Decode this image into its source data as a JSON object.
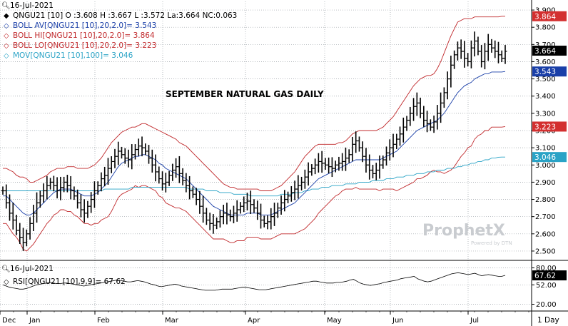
{
  "header": {
    "date": "16-Jul-2021",
    "indicators": [
      {
        "text": "QNGU21 [10] O :3.608 H :3.667 L :3.572 La:3.664 NC:0.063",
        "color": "#000000",
        "marker": "diamond"
      },
      {
        "text": "BOLL AV[QNGU21 [10],20,2.0]= 3.543",
        "color": "#1a3fa8",
        "marker": "diamond-outline"
      },
      {
        "text": "BOLL HI[QNGU21 [10],20,2.0]= 3.864",
        "color": "#c0282b",
        "marker": "diamond-outline"
      },
      {
        "text": "BOLL LO[QNGU21 [10],20,2.0]= 3.223",
        "color": "#c0282b",
        "marker": "diamond-outline"
      },
      {
        "text": "MOV[QNGU21 [10],100]= 3.046",
        "color": "#2aa3c6",
        "marker": "diamond-outline"
      }
    ]
  },
  "annotation": "SEPTEMBER NATURAL GAS DAILY",
  "watermark": {
    "brand": "ProphetX",
    "sub": "Powered by DTN"
  },
  "rsi_header": {
    "date": "16-Jul-2021",
    "text": "RSI[QNGU21 [10],9,9]= 67.62"
  },
  "timeframe": "1 Day",
  "colors": {
    "bar": "#000000",
    "boll_mid": "#1a3fa8",
    "boll_band": "#c0282b",
    "mov": "#2aa3c6",
    "grid": "#9aa0a6",
    "tag_last": "#000000",
    "tag_mid": "#1a3fa8",
    "tag_band": "#d32f2f",
    "tag_mov": "#2aa3c6"
  },
  "chart_data": [
    {
      "type": "ohlc",
      "title": "SEPTEMBER NATURAL GAS DAILY",
      "ylim": [
        2.45,
        3.95
      ],
      "y_ticks": [
        2.5,
        2.6,
        2.7,
        2.8,
        2.9,
        3.0,
        3.1,
        3.2,
        3.3,
        3.4,
        3.5,
        3.6,
        3.7,
        3.8,
        3.9
      ],
      "y_tick_labels": [
        "2.500",
        "2.600",
        "2.700",
        "2.800",
        "2.900",
        "3.000",
        "3.100",
        "3.200",
        "3.300",
        "3.400",
        "3.500",
        "3.600",
        "3.700",
        "3.800",
        "3.900"
      ],
      "months": [
        "Dec",
        "Jan",
        "Feb",
        "Mar",
        "Apr",
        "May",
        "Jun",
        "Jul"
      ],
      "grid": true,
      "price_tags": [
        {
          "label": "3.864",
          "value": 3.864,
          "kind": "band"
        },
        {
          "label": "3.664",
          "value": 3.664,
          "kind": "last"
        },
        {
          "label": "3.543",
          "value": 3.543,
          "kind": "mid"
        },
        {
          "label": "3.223",
          "value": 3.223,
          "kind": "band"
        },
        {
          "label": "3.046",
          "value": 3.046,
          "kind": "mov"
        }
      ],
      "closes": [
        2.85,
        2.78,
        2.72,
        2.68,
        2.62,
        2.58,
        2.55,
        2.6,
        2.66,
        2.72,
        2.78,
        2.82,
        2.85,
        2.88,
        2.9,
        2.88,
        2.85,
        2.87,
        2.9,
        2.88,
        2.85,
        2.82,
        2.78,
        2.74,
        2.72,
        2.76,
        2.8,
        2.85,
        2.88,
        2.92,
        2.94,
        2.98,
        3.02,
        3.05,
        3.08,
        3.06,
        3.04,
        3.03,
        3.06,
        3.09,
        3.11,
        3.1,
        3.08,
        3.04,
        3.0,
        2.96,
        2.92,
        2.89,
        2.9,
        2.94,
        2.97,
        2.99,
        2.95,
        2.91,
        2.88,
        2.85,
        2.83,
        2.8,
        2.76,
        2.72,
        2.68,
        2.66,
        2.65,
        2.67,
        2.7,
        2.72,
        2.71,
        2.7,
        2.72,
        2.74,
        2.76,
        2.78,
        2.79,
        2.77,
        2.75,
        2.72,
        2.68,
        2.66,
        2.67,
        2.7,
        2.72,
        2.75,
        2.78,
        2.8,
        2.82,
        2.84,
        2.86,
        2.88,
        2.9,
        2.93,
        2.96,
        2.98,
        3.0,
        3.02,
        3.01,
        3.0,
        2.99,
        2.98,
        3.0,
        3.01,
        3.02,
        3.04,
        3.06,
        3.12,
        3.14,
        3.1,
        3.05,
        3.0,
        2.97,
        2.95,
        2.97,
        3.0,
        3.03,
        3.07,
        3.1,
        3.12,
        3.15,
        3.18,
        3.22,
        3.26,
        3.3,
        3.34,
        3.36,
        3.3,
        3.26,
        3.24,
        3.22,
        3.25,
        3.3,
        3.36,
        3.42,
        3.5,
        3.58,
        3.64,
        3.68,
        3.66,
        3.62,
        3.6,
        3.68,
        3.72,
        3.66,
        3.6,
        3.66,
        3.7,
        3.68,
        3.66,
        3.64,
        3.62,
        3.66
      ],
      "boll_av": [
        2.82,
        2.82,
        2.8,
        2.78,
        2.76,
        2.74,
        2.72,
        2.71,
        2.71,
        2.72,
        2.74,
        2.76,
        2.78,
        2.8,
        2.82,
        2.84,
        2.85,
        2.86,
        2.86,
        2.86,
        2.86,
        2.85,
        2.84,
        2.83,
        2.82,
        2.82,
        2.82,
        2.83,
        2.84,
        2.86,
        2.88,
        2.9,
        2.93,
        2.96,
        2.99,
        3.01,
        3.02,
        3.03,
        3.04,
        3.05,
        3.05,
        3.06,
        3.06,
        3.05,
        3.04,
        3.03,
        3.01,
        3.0,
        2.98,
        2.97,
        2.96,
        2.95,
        2.94,
        2.93,
        2.92,
        2.9,
        2.88,
        2.86,
        2.84,
        2.82,
        2.8,
        2.78,
        2.76,
        2.75,
        2.74,
        2.73,
        2.72,
        2.71,
        2.71,
        2.71,
        2.71,
        2.71,
        2.72,
        2.72,
        2.72,
        2.72,
        2.71,
        2.71,
        2.71,
        2.71,
        2.72,
        2.73,
        2.74,
        2.75,
        2.76,
        2.77,
        2.78,
        2.8,
        2.82,
        2.84,
        2.86,
        2.88,
        2.9,
        2.92,
        2.93,
        2.94,
        2.95,
        2.96,
        2.97,
        2.98,
        2.99,
        3.0,
        3.01,
        3.02,
        3.03,
        3.03,
        3.03,
        3.03,
        3.03,
        3.03,
        3.03,
        3.03,
        3.04,
        3.05,
        3.06,
        3.07,
        3.08,
        3.1,
        3.12,
        3.14,
        3.16,
        3.18,
        3.2,
        3.21,
        3.22,
        3.23,
        3.24,
        3.25,
        3.26,
        3.28,
        3.3,
        3.33,
        3.36,
        3.39,
        3.42,
        3.44,
        3.46,
        3.47,
        3.48,
        3.5,
        3.51,
        3.52,
        3.53,
        3.53,
        3.54,
        3.54,
        3.54,
        3.54,
        3.543
      ],
      "boll_hi": [
        2.98,
        2.98,
        2.97,
        2.96,
        2.94,
        2.93,
        2.93,
        2.92,
        2.9,
        2.9,
        2.91,
        2.92,
        2.93,
        2.94,
        2.96,
        2.97,
        2.98,
        2.98,
        2.98,
        2.99,
        2.99,
        2.99,
        2.98,
        2.98,
        2.98,
        2.98,
        2.99,
        3.0,
        3.02,
        3.04,
        3.07,
        3.1,
        3.13,
        3.15,
        3.17,
        3.19,
        3.2,
        3.21,
        3.22,
        3.22,
        3.23,
        3.24,
        3.24,
        3.23,
        3.22,
        3.21,
        3.2,
        3.19,
        3.18,
        3.17,
        3.16,
        3.15,
        3.13,
        3.12,
        3.11,
        3.09,
        3.07,
        3.05,
        3.03,
        3.01,
        2.99,
        2.97,
        2.95,
        2.93,
        2.91,
        2.89,
        2.88,
        2.87,
        2.87,
        2.86,
        2.86,
        2.86,
        2.86,
        2.86,
        2.86,
        2.86,
        2.85,
        2.85,
        2.85,
        2.85,
        2.86,
        2.87,
        2.88,
        2.9,
        2.92,
        2.94,
        2.96,
        2.99,
        3.02,
        3.05,
        3.07,
        3.09,
        3.11,
        3.12,
        3.12,
        3.12,
        3.12,
        3.12,
        3.12,
        3.13,
        3.13,
        3.14,
        3.16,
        3.18,
        3.19,
        3.2,
        3.2,
        3.2,
        3.2,
        3.2,
        3.2,
        3.21,
        3.22,
        3.24,
        3.26,
        3.28,
        3.31,
        3.34,
        3.37,
        3.4,
        3.43,
        3.46,
        3.48,
        3.5,
        3.51,
        3.52,
        3.52,
        3.53,
        3.56,
        3.6,
        3.65,
        3.7,
        3.75,
        3.79,
        3.83,
        3.84,
        3.85,
        3.85,
        3.85,
        3.86,
        3.86,
        3.86,
        3.86,
        3.86,
        3.86,
        3.86,
        3.86,
        3.864,
        3.864
      ],
      "boll_lo": [
        2.66,
        2.66,
        2.63,
        2.6,
        2.58,
        2.55,
        2.51,
        2.5,
        2.52,
        2.54,
        2.57,
        2.6,
        2.63,
        2.66,
        2.68,
        2.71,
        2.72,
        2.74,
        2.74,
        2.73,
        2.73,
        2.71,
        2.7,
        2.68,
        2.66,
        2.66,
        2.65,
        2.66,
        2.66,
        2.68,
        2.69,
        2.7,
        2.73,
        2.77,
        2.81,
        2.83,
        2.84,
        2.85,
        2.86,
        2.88,
        2.87,
        2.88,
        2.88,
        2.87,
        2.86,
        2.85,
        2.82,
        2.81,
        2.78,
        2.77,
        2.76,
        2.75,
        2.75,
        2.74,
        2.73,
        2.71,
        2.69,
        2.67,
        2.65,
        2.63,
        2.61,
        2.59,
        2.57,
        2.57,
        2.57,
        2.57,
        2.56,
        2.55,
        2.55,
        2.56,
        2.56,
        2.56,
        2.58,
        2.58,
        2.58,
        2.58,
        2.57,
        2.57,
        2.57,
        2.57,
        2.58,
        2.59,
        2.6,
        2.6,
        2.6,
        2.6,
        2.6,
        2.61,
        2.62,
        2.63,
        2.65,
        2.67,
        2.69,
        2.72,
        2.74,
        2.76,
        2.78,
        2.8,
        2.82,
        2.83,
        2.85,
        2.86,
        2.86,
        2.86,
        2.87,
        2.86,
        2.86,
        2.86,
        2.86,
        2.86,
        2.86,
        2.85,
        2.86,
        2.86,
        2.86,
        2.86,
        2.85,
        2.86,
        2.87,
        2.88,
        2.89,
        2.9,
        2.92,
        2.92,
        2.93,
        2.94,
        2.96,
        2.97,
        2.96,
        2.96,
        2.95,
        2.96,
        2.97,
        2.99,
        3.02,
        3.05,
        3.07,
        3.1,
        3.11,
        3.15,
        3.17,
        3.18,
        3.2,
        3.2,
        3.22,
        3.22,
        3.22,
        3.22,
        3.223
      ],
      "mov": [
        2.85,
        2.85,
        2.85,
        2.85,
        2.85,
        2.85,
        2.85,
        2.85,
        2.85,
        2.85,
        2.85,
        2.85,
        2.85,
        2.85,
        2.85,
        2.85,
        2.85,
        2.85,
        2.85,
        2.85,
        2.85,
        2.85,
        2.85,
        2.85,
        2.85,
        2.85,
        2.85,
        2.85,
        2.85,
        2.85,
        2.86,
        2.86,
        2.86,
        2.86,
        2.86,
        2.86,
        2.86,
        2.86,
        2.87,
        2.87,
        2.87,
        2.87,
        2.87,
        2.87,
        2.87,
        2.87,
        2.87,
        2.87,
        2.87,
        2.87,
        2.87,
        2.87,
        2.87,
        2.87,
        2.87,
        2.86,
        2.86,
        2.86,
        2.86,
        2.86,
        2.85,
        2.85,
        2.85,
        2.85,
        2.84,
        2.84,
        2.84,
        2.84,
        2.83,
        2.83,
        2.83,
        2.83,
        2.83,
        2.82,
        2.82,
        2.82,
        2.82,
        2.82,
        2.82,
        2.82,
        2.82,
        2.82,
        2.83,
        2.83,
        2.83,
        2.83,
        2.84,
        2.84,
        2.84,
        2.85,
        2.85,
        2.86,
        2.86,
        2.86,
        2.87,
        2.87,
        2.87,
        2.88,
        2.88,
        2.88,
        2.88,
        2.89,
        2.89,
        2.89,
        2.89,
        2.9,
        2.9,
        2.9,
        2.9,
        2.91,
        2.91,
        2.91,
        2.91,
        2.92,
        2.92,
        2.92,
        2.93,
        2.93,
        2.93,
        2.94,
        2.94,
        2.94,
        2.95,
        2.95,
        2.95,
        2.96,
        2.96,
        2.96,
        2.97,
        2.97,
        2.97,
        2.98,
        2.98,
        2.98,
        2.99,
        2.99,
        3.0,
        3.0,
        3.01,
        3.01,
        3.02,
        3.02,
        3.03,
        3.03,
        3.04,
        3.04,
        3.045,
        3.046,
        3.046
      ]
    },
    {
      "type": "line",
      "title": "RSI[QNGU21 [10],9,9]",
      "ylim": [
        10,
        90
      ],
      "y_ticks": [
        20,
        52,
        80
      ],
      "y_tick_labels": [
        "20.00",
        "52.00",
        "80.00"
      ],
      "last_label": "67.62",
      "values": [
        52,
        50,
        48,
        47,
        46,
        45,
        45,
        46,
        48,
        50,
        52,
        53,
        54,
        55,
        56,
        55,
        54,
        54,
        55,
        55,
        54,
        53,
        52,
        51,
        50,
        51,
        52,
        53,
        54,
        55,
        56,
        57,
        58,
        59,
        60,
        59,
        58,
        57,
        57,
        58,
        59,
        58,
        57,
        55,
        53,
        52,
        50,
        49,
        50,
        51,
        52,
        53,
        52,
        50,
        49,
        48,
        47,
        46,
        45,
        44,
        43,
        43,
        43,
        43,
        44,
        45,
        45,
        45,
        45,
        46,
        47,
        48,
        48,
        47,
        46,
        45,
        44,
        44,
        44,
        45,
        46,
        47,
        48,
        49,
        50,
        51,
        52,
        53,
        54,
        55,
        56,
        57,
        58,
        58,
        57,
        56,
        55,
        55,
        55,
        56,
        56,
        57,
        58,
        60,
        61,
        58,
        55,
        53,
        52,
        51,
        52,
        53,
        54,
        56,
        57,
        58,
        59,
        60,
        62,
        63,
        64,
        65,
        66,
        62,
        60,
        58,
        57,
        58,
        60,
        62,
        64,
        66,
        68,
        70,
        71,
        72,
        71,
        70,
        69,
        70,
        71,
        69,
        67,
        68,
        69,
        68,
        67,
        66,
        66,
        67.62
      ],
      "grid": true
    }
  ]
}
